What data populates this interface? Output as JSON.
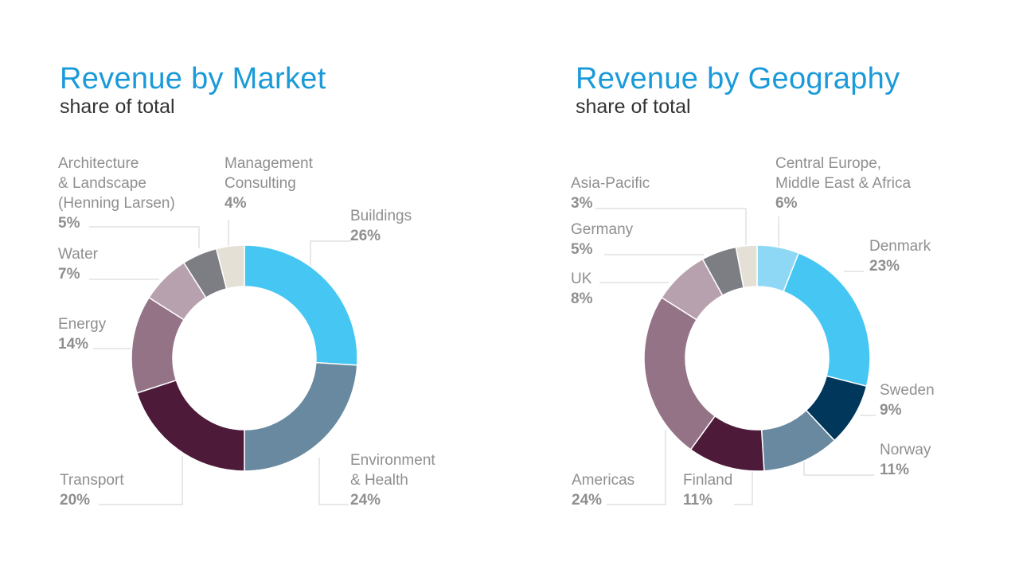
{
  "colors": {
    "title": "#1a9ad9",
    "subtitle": "#333333",
    "label": "#8f8f8f",
    "leader": "#d9d9d9"
  },
  "chart_data": [
    {
      "type": "pie",
      "donut": true,
      "title": "Revenue by Market",
      "subtitle": "share of total",
      "slices": [
        {
          "label": "Buildings",
          "value": 26,
          "display": "26%",
          "color": "#45c6f3"
        },
        {
          "label": "Environment\n& Health",
          "value": 24,
          "display": "24%",
          "color": "#6889a0"
        },
        {
          "label": "Transport",
          "value": 20,
          "display": "20%",
          "color": "#4d1a3a"
        },
        {
          "label": "Energy",
          "value": 14,
          "display": "14%",
          "color": "#957387"
        },
        {
          "label": "Water",
          "value": 7,
          "display": "7%",
          "color": "#b8a1ae"
        },
        {
          "label": "Architecture\n& Landscape\n(Henning Larsen)",
          "value": 5,
          "display": "5%",
          "color": "#7d7e84"
        },
        {
          "label": "Management\nConsulting",
          "value": 4,
          "display": "4%",
          "color": "#e4e0d5"
        }
      ]
    },
    {
      "type": "pie",
      "donut": true,
      "title": "Revenue by Geography",
      "subtitle": "share of total",
      "slices": [
        {
          "label": "Central Europe,\nMiddle East & Africa",
          "value": 6,
          "display": "6%",
          "color": "#8ed8f6"
        },
        {
          "label": "Denmark",
          "value": 23,
          "display": "23%",
          "color": "#45c6f3"
        },
        {
          "label": "Sweden",
          "value": 9,
          "display": "9%",
          "color": "#00375b"
        },
        {
          "label": "Norway",
          "value": 11,
          "display": "11%",
          "color": "#6889a0"
        },
        {
          "label": "Finland",
          "value": 11,
          "display": "11%",
          "color": "#4d1a3a"
        },
        {
          "label": "Americas",
          "value": 24,
          "display": "24%",
          "color": "#957387"
        },
        {
          "label": "UK",
          "value": 8,
          "display": "8%",
          "color": "#b8a1ae"
        },
        {
          "label": "Germany",
          "value": 5,
          "display": "5%",
          "color": "#7d7e84"
        },
        {
          "label": "Asia-Pacific",
          "value": 3,
          "display": "3%",
          "color": "#e4e0d5"
        }
      ]
    }
  ]
}
